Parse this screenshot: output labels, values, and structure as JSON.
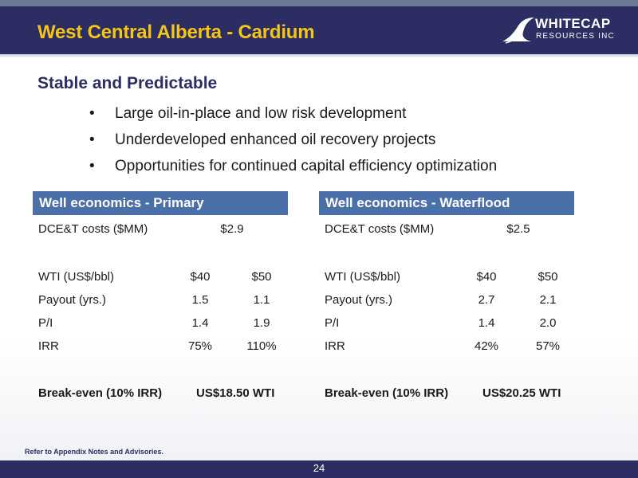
{
  "header": {
    "title": "West Central Alberta - Cardium",
    "logo_line1": "WHITECAP",
    "logo_line2": "RESOURCES INC"
  },
  "content": {
    "subtitle": "Stable and Predictable",
    "bullets": [
      "Large oil-in-place and low risk development",
      "Underdeveloped enhanced oil recovery projects",
      "Opportunities for continued capital efficiency optimization"
    ],
    "bullet_glyph": "•"
  },
  "tables": {
    "primary": {
      "heading": "Well economics - Primary",
      "dcet_label": "DCE&T costs ($MM)",
      "dcet_value": "$2.9",
      "wti_label": "WTI (US$/bbl)",
      "wti_40": "$40",
      "wti_50": "$50",
      "payout_label": "Payout (yrs.)",
      "payout_40": "1.5",
      "payout_50": "1.1",
      "pi_label": "P/I",
      "pi_40": "1.4",
      "pi_50": "1.9",
      "irr_label": "IRR",
      "irr_40": "75%",
      "irr_50": "110%",
      "breakeven_label": "Break-even (10% IRR)",
      "breakeven_value": "US$18.50 WTI"
    },
    "waterflood": {
      "heading": "Well economics - Waterflood",
      "dcet_label": "DCE&T costs ($MM)",
      "dcet_value": "$2.5",
      "wti_label": "WTI (US$/bbl)",
      "wti_40": "$40",
      "wti_50": "$50",
      "payout_label": "Payout (yrs.)",
      "payout_40": "2.7",
      "payout_50": "2.1",
      "pi_label": "P/I",
      "pi_40": "1.4",
      "pi_50": "2.0",
      "irr_label": "IRR",
      "irr_40": "42%",
      "irr_50": "57%",
      "breakeven_label": "Break-even (10% IRR)",
      "breakeven_value": "US$20.25 WTI"
    }
  },
  "footer": {
    "note": "Refer to Appendix Notes and Advisories.",
    "page_number": "24"
  },
  "colors": {
    "navy": "#2b2d63",
    "title_yellow": "#f5c518",
    "table_header_blue": "#4a6fa9"
  }
}
